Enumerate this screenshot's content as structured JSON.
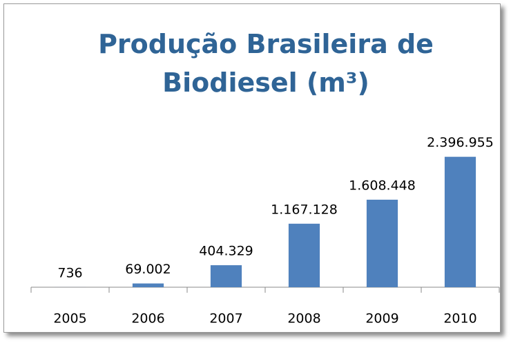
{
  "chart_data": {
    "type": "bar",
    "title": "Produção Brasileira de Biodiesel (m³)",
    "categories": [
      "2005",
      "2006",
      "2007",
      "2008",
      "2009",
      "2010"
    ],
    "values": [
      736,
      69002,
      404329,
      1167128,
      1608448,
      2396955
    ],
    "value_labels": [
      "736",
      "69.002",
      "404.329",
      "1.167.128",
      "1.608.448",
      "2.396.955"
    ],
    "color": "#4f81bd",
    "ylim": [
      0,
      3000000
    ]
  }
}
